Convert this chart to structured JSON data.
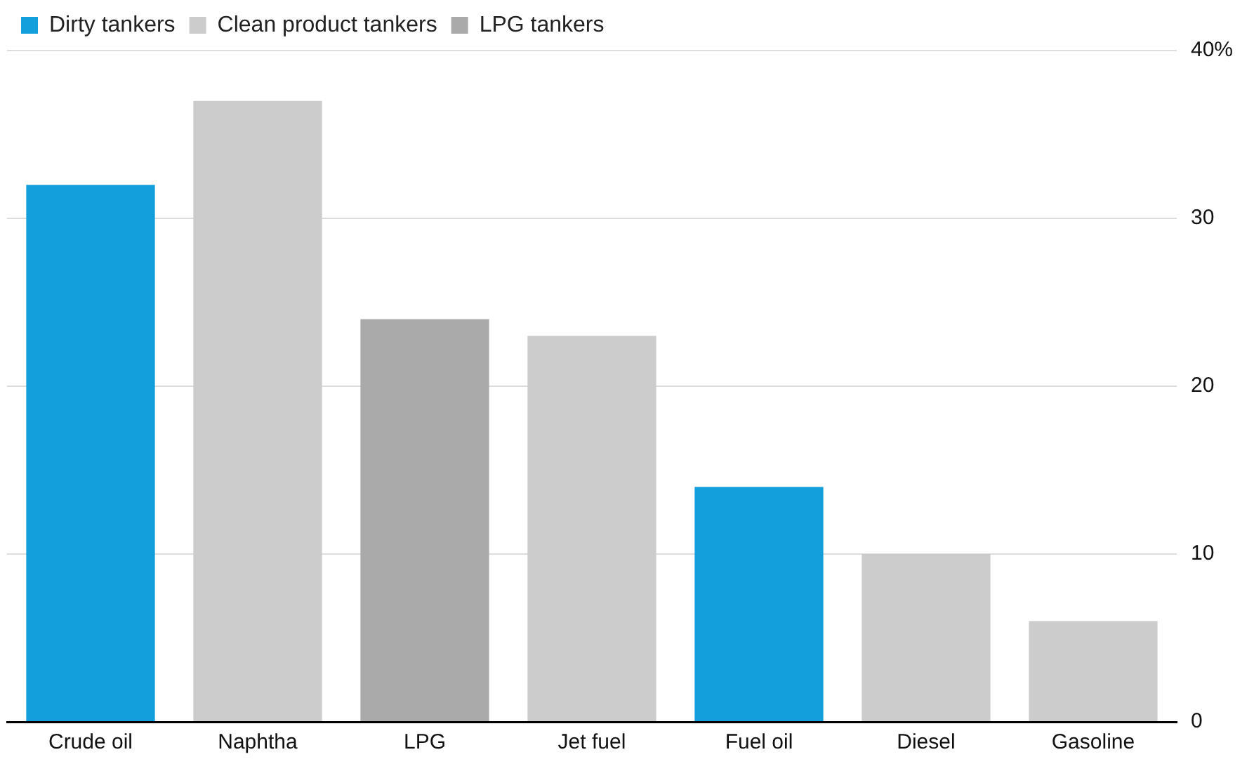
{
  "chart_data": {
    "type": "bar",
    "categories": [
      "Crude oil",
      "Naphtha",
      "LPG",
      "Jet fuel",
      "Fuel oil",
      "Diesel",
      "Gasoline"
    ],
    "series": [
      {
        "name": "Dirty tankers",
        "color": "#139fdc",
        "values": [
          32,
          null,
          null,
          null,
          14,
          null,
          null
        ]
      },
      {
        "name": "Clean product tankers",
        "color": "#cccccc",
        "values": [
          null,
          37,
          null,
          23,
          null,
          10,
          6
        ]
      },
      {
        "name": "LPG tankers",
        "color": "#aaaaaa",
        "values": [
          null,
          null,
          24,
          null,
          null,
          null,
          null
        ]
      }
    ],
    "ylim": [
      0,
      40
    ],
    "yticks": [
      0,
      10,
      20,
      30,
      {
        "value": 40,
        "label": "40%"
      }
    ],
    "grid": "y",
    "legend": "top left"
  }
}
